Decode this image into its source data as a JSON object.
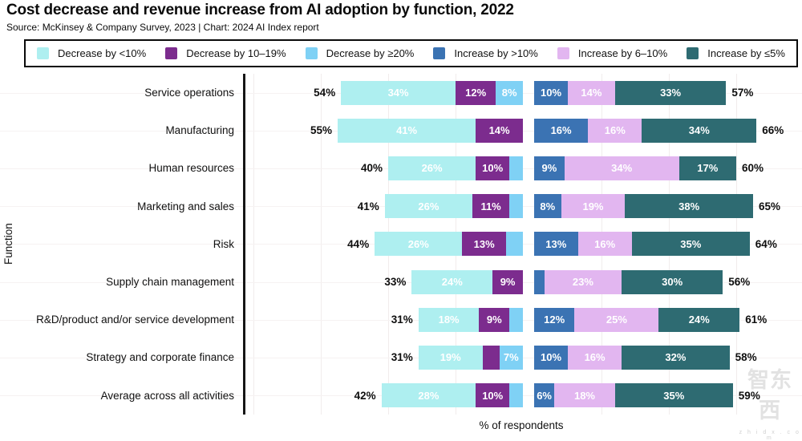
{
  "header": {
    "title": "Cost decrease and revenue increase from AI adoption by function, 2022",
    "subtitle": "Source: McKinsey & Company Survey, 2023 | Chart: 2024 AI Index report"
  },
  "watermark": {
    "logo_text": "智东西",
    "domain_text": "z h i d x . c o m"
  },
  "chart_data": {
    "type": "bar",
    "variant": "horizontal-diverging-stacked",
    "title": "Cost decrease and revenue increase from AI adoption by function, 2022",
    "xlabel": "% of respondents",
    "ylabel": "Function",
    "legend_position": "top",
    "grid": "faint vertical gridlines every 20%",
    "axis_color": "#161616",
    "legend": [
      {
        "id": "dec_lt10",
        "label": "Decrease by <10%",
        "color": "#aeeff0"
      },
      {
        "id": "dec_10_19",
        "label": "Decrease by 10–19%",
        "color": "#7c2c8e"
      },
      {
        "id": "dec_ge20",
        "label": "Decrease by ≥20%",
        "color": "#7fd1f5"
      },
      {
        "id": "inc_gt10",
        "label": "Increase by >10%",
        "color": "#3b73b3"
      },
      {
        "id": "inc_6_10",
        "label": "Increase by 6–10%",
        "color": "#e2b6f0"
      },
      {
        "id": "inc_le5",
        "label": "Increase by ≤5%",
        "color": "#2e6b72"
      }
    ],
    "rows": [
      {
        "function": "Service operations",
        "decrease_total": "54%",
        "increase_total": "57%",
        "decrease_segments": [
          {
            "bucket": "dec_lt10",
            "value": 34,
            "label": "34%"
          },
          {
            "bucket": "dec_10_19",
            "value": 12,
            "label": "12%"
          },
          {
            "bucket": "dec_ge20",
            "value": 8,
            "label": "8%"
          }
        ],
        "increase_segments": [
          {
            "bucket": "inc_gt10",
            "value": 10,
            "label": "10%"
          },
          {
            "bucket": "inc_6_10",
            "value": 14,
            "label": "14%"
          },
          {
            "bucket": "inc_le5",
            "value": 33,
            "label": "33%"
          }
        ]
      },
      {
        "function": "Manufacturing",
        "decrease_total": "55%",
        "increase_total": "66%",
        "decrease_segments": [
          {
            "bucket": "dec_lt10",
            "value": 41,
            "label": "41%"
          },
          {
            "bucket": "dec_10_19",
            "value": 14,
            "label": "14%"
          }
        ],
        "increase_segments": [
          {
            "bucket": "inc_gt10",
            "value": 16,
            "label": "16%"
          },
          {
            "bucket": "inc_6_10",
            "value": 16,
            "label": "16%"
          },
          {
            "bucket": "inc_le5",
            "value": 34,
            "label": "34%"
          }
        ]
      },
      {
        "function": "Human resources",
        "decrease_total": "40%",
        "increase_total": "60%",
        "decrease_segments": [
          {
            "bucket": "dec_lt10",
            "value": 26,
            "label": "26%"
          },
          {
            "bucket": "dec_10_19",
            "value": 10,
            "label": "10%"
          },
          {
            "bucket": "dec_ge20",
            "value": 4,
            "label": ""
          }
        ],
        "increase_segments": [
          {
            "bucket": "inc_gt10",
            "value": 9,
            "label": "9%"
          },
          {
            "bucket": "inc_6_10",
            "value": 34,
            "label": "34%"
          },
          {
            "bucket": "inc_le5",
            "value": 17,
            "label": "17%"
          }
        ]
      },
      {
        "function": "Marketing and sales",
        "decrease_total": "41%",
        "increase_total": "65%",
        "decrease_segments": [
          {
            "bucket": "dec_lt10",
            "value": 26,
            "label": "26%"
          },
          {
            "bucket": "dec_10_19",
            "value": 11,
            "label": "11%"
          },
          {
            "bucket": "dec_ge20",
            "value": 4,
            "label": ""
          }
        ],
        "increase_segments": [
          {
            "bucket": "inc_gt10",
            "value": 8,
            "label": "8%"
          },
          {
            "bucket": "inc_6_10",
            "value": 19,
            "label": "19%"
          },
          {
            "bucket": "inc_le5",
            "value": 38,
            "label": "38%"
          }
        ]
      },
      {
        "function": "Risk",
        "decrease_total": "44%",
        "increase_total": "64%",
        "decrease_segments": [
          {
            "bucket": "dec_lt10",
            "value": 26,
            "label": "26%"
          },
          {
            "bucket": "dec_10_19",
            "value": 13,
            "label": "13%"
          },
          {
            "bucket": "dec_ge20",
            "value": 5,
            "label": ""
          }
        ],
        "increase_segments": [
          {
            "bucket": "inc_gt10",
            "value": 13,
            "label": "13%"
          },
          {
            "bucket": "inc_6_10",
            "value": 16,
            "label": "16%"
          },
          {
            "bucket": "inc_le5",
            "value": 35,
            "label": "35%"
          }
        ]
      },
      {
        "function": "Supply chain management",
        "decrease_total": "33%",
        "increase_total": "56%",
        "decrease_segments": [
          {
            "bucket": "dec_lt10",
            "value": 24,
            "label": "24%"
          },
          {
            "bucket": "dec_10_19",
            "value": 9,
            "label": "9%"
          }
        ],
        "increase_segments": [
          {
            "bucket": "inc_gt10",
            "value": 3,
            "label": ""
          },
          {
            "bucket": "inc_6_10",
            "value": 23,
            "label": "23%"
          },
          {
            "bucket": "inc_le5",
            "value": 30,
            "label": "30%"
          }
        ]
      },
      {
        "function": "R&D/product and/or service development",
        "decrease_total": "31%",
        "increase_total": "61%",
        "decrease_segments": [
          {
            "bucket": "dec_lt10",
            "value": 18,
            "label": "18%"
          },
          {
            "bucket": "dec_10_19",
            "value": 9,
            "label": "9%"
          },
          {
            "bucket": "dec_ge20",
            "value": 4,
            "label": ""
          }
        ],
        "increase_segments": [
          {
            "bucket": "inc_gt10",
            "value": 12,
            "label": "12%"
          },
          {
            "bucket": "inc_6_10",
            "value": 25,
            "label": "25%"
          },
          {
            "bucket": "inc_le5",
            "value": 24,
            "label": "24%"
          }
        ]
      },
      {
        "function": "Strategy and corporate finance",
        "decrease_total": "31%",
        "increase_total": "58%",
        "decrease_segments": [
          {
            "bucket": "dec_lt10",
            "value": 19,
            "label": "19%"
          },
          {
            "bucket": "dec_10_19",
            "value": 5,
            "label": ""
          },
          {
            "bucket": "dec_ge20",
            "value": 7,
            "label": "7%"
          }
        ],
        "increase_segments": [
          {
            "bucket": "inc_gt10",
            "value": 10,
            "label": "10%"
          },
          {
            "bucket": "inc_6_10",
            "value": 16,
            "label": "16%"
          },
          {
            "bucket": "inc_le5",
            "value": 32,
            "label": "32%"
          }
        ]
      },
      {
        "function": "Average across all activities",
        "decrease_total": "42%",
        "increase_total": "59%",
        "decrease_segments": [
          {
            "bucket": "dec_lt10",
            "value": 28,
            "label": "28%"
          },
          {
            "bucket": "dec_10_19",
            "value": 10,
            "label": "10%"
          },
          {
            "bucket": "dec_ge20",
            "value": 4,
            "label": ""
          }
        ],
        "increase_segments": [
          {
            "bucket": "inc_gt10",
            "value": 6,
            "label": "6%"
          },
          {
            "bucket": "inc_6_10",
            "value": 18,
            "label": "18%"
          },
          {
            "bucket": "inc_le5",
            "value": 35,
            "label": "35%"
          }
        ]
      }
    ]
  }
}
